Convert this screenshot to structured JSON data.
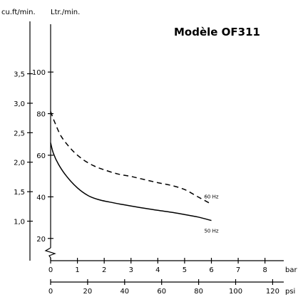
{
  "chart_data": {
    "type": "line",
    "title": "Modèle OF311",
    "axes": {
      "left_outer": {
        "label": "cu.ft/min.",
        "ticks": [
          "1,0",
          "1,5",
          "2,0",
          "2,5",
          "3,0",
          "3,5"
        ],
        "range": [
          0.33,
          4.34
        ]
      },
      "left_inner": {
        "label": "Ltr./min.",
        "ticks": [
          "20",
          "40",
          "60",
          "80",
          "100"
        ],
        "range": [
          9.3,
          123
        ]
      },
      "bottom_bar": {
        "label": "bar",
        "ticks": [
          "0",
          "1",
          "2",
          "3",
          "4",
          "5",
          "6",
          "7",
          "8"
        ],
        "range": [
          0,
          8.7
        ]
      },
      "bottom_psi": {
        "label": "psi",
        "ticks": [
          "0",
          "20",
          "40",
          "60",
          "80",
          "100",
          "120"
        ],
        "range": [
          0,
          126
        ]
      }
    },
    "x_unit": "bar",
    "y_unit": "Ltr./min.",
    "series": [
      {
        "name": "60 Hz",
        "line_style": "dashed",
        "x": [
          0,
          0.15,
          0.4,
          0.8,
          1.2,
          1.6,
          2.0,
          2.5,
          3.0,
          3.5,
          4.0,
          4.5,
          5.0,
          5.5,
          6.0
        ],
        "y": [
          81,
          76,
          69,
          62.5,
          58,
          55,
          53,
          51,
          49.8,
          48.3,
          46.8,
          45.5,
          43.5,
          40,
          36.5
        ]
      },
      {
        "name": "50 Hz",
        "line_style": "solid",
        "x": [
          0,
          0.1,
          0.3,
          0.6,
          1.0,
          1.4,
          1.8,
          2.2,
          2.6,
          3.0,
          3.5,
          4.0,
          4.5,
          5.0,
          5.5,
          6.0
        ],
        "y": [
          66,
          61,
          55.5,
          49.8,
          44.3,
          40.6,
          38.6,
          37.5,
          36.5,
          35.6,
          34.5,
          33.5,
          32.6,
          31.5,
          30.3,
          28.6
        ]
      }
    ],
    "grid": false,
    "legend": "inline labels at line ends"
  }
}
